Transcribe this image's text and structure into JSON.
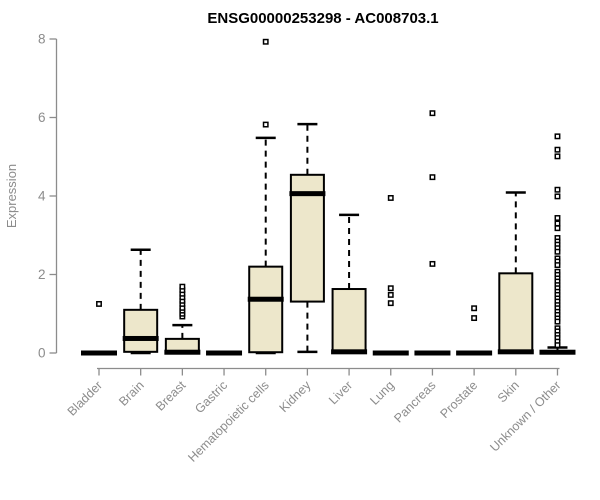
{
  "chart_data": {
    "type": "boxplot",
    "title": "ENSG00000253298 - AC008703.1",
    "ylabel": "Expression",
    "xlabel": "",
    "ylim": [
      0,
      8
    ],
    "yticks": [
      0,
      2,
      4,
      6,
      8
    ],
    "grid": false,
    "legend": "none",
    "colors": {
      "box_fill": "#EDE7CB",
      "box_stroke": "#000000",
      "median": "#000000",
      "whisker": "#000000",
      "outlier_stroke": "#000000",
      "outlier_fill": "#ffffff",
      "axis": "#8c8c8c",
      "tick_label": "#8c8c8c",
      "title": "#000000",
      "background": "#ffffff"
    },
    "categories": [
      "Bladder",
      "Brain",
      "Breast",
      "Gastric",
      "Hematopoietic cells",
      "Kidney",
      "Liver",
      "Lung",
      "Pancreas",
      "Prostate",
      "Skin",
      "Unknown / Other"
    ],
    "boxes": [
      {
        "category": "Bladder",
        "low": 0,
        "q1": 0,
        "median": 0,
        "q3": 0,
        "high": 0,
        "outliers": [
          1.25
        ]
      },
      {
        "category": "Brain",
        "low": 0,
        "q1": 0.03,
        "median": 0.37,
        "q3": 1.1,
        "high": 2.63,
        "outliers": []
      },
      {
        "category": "Breast",
        "low": 0,
        "q1": 0,
        "median": 0.02,
        "q3": 0.36,
        "high": 0.71,
        "outliers": [
          0.93,
          1.0,
          1.08,
          1.15,
          1.25,
          1.33,
          1.42,
          1.51,
          1.6,
          1.69
        ]
      },
      {
        "category": "Gastric",
        "low": 0,
        "q1": 0,
        "median": 0,
        "q3": 0,
        "high": 0,
        "outliers": []
      },
      {
        "category": "Hematopoietic cells",
        "low": 0,
        "q1": 0.02,
        "median": 1.37,
        "q3": 2.2,
        "high": 5.48,
        "outliers": [
          5.82,
          7.93
        ]
      },
      {
        "category": "Kidney",
        "low": 0.03,
        "q1": 1.31,
        "median": 4.06,
        "q3": 4.54,
        "high": 5.83,
        "outliers": []
      },
      {
        "category": "Liver",
        "low": 0,
        "q1": 0,
        "median": 0.03,
        "q3": 1.63,
        "high": 3.52,
        "outliers": []
      },
      {
        "category": "Lung",
        "low": 0,
        "q1": 0,
        "median": 0,
        "q3": 0,
        "high": 0,
        "outliers": [
          1.27,
          1.48,
          1.65,
          3.95
        ]
      },
      {
        "category": "Pancreas",
        "low": 0,
        "q1": 0,
        "median": 0,
        "q3": 0,
        "high": 0,
        "outliers": [
          2.27,
          4.48,
          6.11
        ]
      },
      {
        "category": "Prostate",
        "low": 0,
        "q1": 0,
        "median": 0,
        "q3": 0,
        "high": 0,
        "outliers": [
          0.89,
          1.14
        ]
      },
      {
        "category": "Skin",
        "low": 0,
        "q1": 0,
        "median": 0.03,
        "q3": 2.03,
        "high": 4.09,
        "outliers": []
      },
      {
        "category": "Unknown / Other",
        "low": 0,
        "q1": 0,
        "median": 0.02,
        "q3": 0.05,
        "high": 0.14,
        "outliers": [
          5.52,
          5.18,
          5.01,
          4.16,
          3.99,
          3.44,
          3.3,
          3.18,
          2.93,
          2.84,
          2.76,
          2.67,
          2.58,
          2.41,
          2.33,
          2.24,
          2.07,
          1.99,
          1.9,
          1.82,
          1.73,
          1.65,
          1.56,
          1.48,
          1.39,
          1.31,
          1.22,
          1.14,
          1.05,
          0.97,
          0.88,
          0.8,
          0.63,
          0.55,
          0.46,
          0.38,
          0.29,
          0.2
        ]
      }
    ]
  }
}
